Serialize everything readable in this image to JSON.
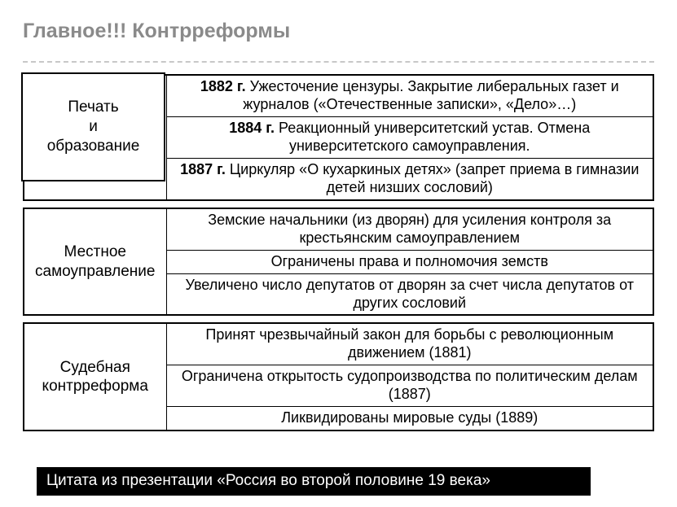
{
  "title": "Главное!!! Контрреформы",
  "block1": {
    "left": "Печать\nи\nобразование",
    "rows": [
      {
        "year": "1882 г.",
        "text": " Ужесточение цензуры. Закрытие либеральных газет и журналов («Отечественные записки», «Дело»…)"
      },
      {
        "year": "1884 г.",
        "text": " Реакционный университетский устав. Отмена университетского самоуправления."
      },
      {
        "year": "1887 г.",
        "text": " Циркуляр «О кухаркиных детях» (запрет приема в гимназии детей низших сословий)"
      }
    ]
  },
  "block2": {
    "left": "Местное\nсамоуправление",
    "rows": [
      "Земские начальники (из дворян) для усиления контроля за крестьянским самоуправлением",
      "Ограничены права и полномочия земств",
      "Увеличено число депутатов от дворян за счет числа депутатов от других сословий"
    ]
  },
  "block3": {
    "left": "Судебная\nконтрреформа",
    "rows": [
      "Принят чрезвычайный закон для борьбы с революционным движением (1881)",
      "Ограничена открытость судопроизводства по политическим делам (1887)",
      "Ликвидированы мировые суды (1889)"
    ]
  },
  "citation": "Цитата из презентации «Россия во второй половине 19 века»"
}
